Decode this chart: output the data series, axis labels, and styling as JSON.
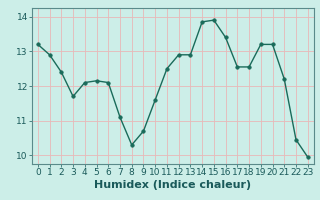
{
  "x": [
    0,
    1,
    2,
    3,
    4,
    5,
    6,
    7,
    8,
    9,
    10,
    11,
    12,
    13,
    14,
    15,
    16,
    17,
    18,
    19,
    20,
    21,
    22,
    23
  ],
  "y": [
    13.2,
    12.9,
    12.4,
    11.7,
    12.1,
    12.15,
    12.1,
    11.1,
    10.3,
    10.7,
    11.6,
    12.5,
    12.9,
    12.9,
    13.85,
    13.9,
    13.4,
    12.55,
    12.55,
    13.2,
    13.2,
    12.2,
    10.45,
    9.95
  ],
  "xlabel": "Humidex (Indice chaleur)",
  "xlim": [
    -0.5,
    23.5
  ],
  "ylim": [
    9.75,
    14.25
  ],
  "yticks": [
    10,
    11,
    12,
    13,
    14
  ],
  "xticks": [
    0,
    1,
    2,
    3,
    4,
    5,
    6,
    7,
    8,
    9,
    10,
    11,
    12,
    13,
    14,
    15,
    16,
    17,
    18,
    19,
    20,
    21,
    22,
    23
  ],
  "line_color": "#1a6b5a",
  "marker_size": 2.5,
  "line_width": 1.0,
  "bg_color": "#cceee8",
  "grid_color": "#e8b8b8",
  "tick_label_fontsize": 6.5,
  "xlabel_fontsize": 8.0
}
